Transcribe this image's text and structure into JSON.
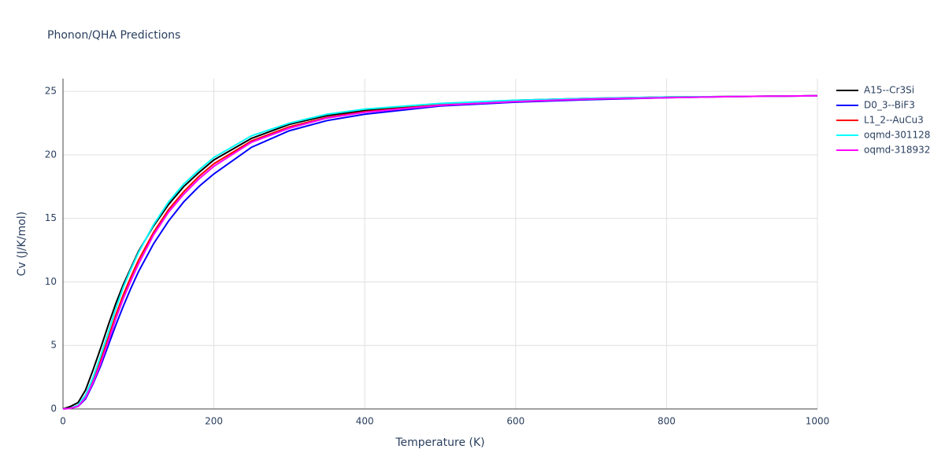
{
  "chart_data": {
    "type": "line",
    "title": "Phonon/QHA Predictions",
    "x_label": "Temperature (K)",
    "y_label": "Cv (J/K/mol)",
    "x": [
      0,
      10,
      20,
      30,
      40,
      50,
      60,
      70,
      80,
      90,
      100,
      120,
      140,
      160,
      180,
      200,
      250,
      300,
      350,
      400,
      500,
      600,
      700,
      800,
      900,
      1000
    ],
    "series": [
      {
        "name": "A15--Cr3Si",
        "color": "#000000",
        "values": [
          0,
          0.2,
          0.5,
          1.5,
          3.1,
          4.8,
          6.6,
          8.3,
          9.8,
          11.1,
          12.4,
          14.4,
          16.1,
          17.5,
          18.6,
          19.6,
          21.3,
          22.4,
          23.1,
          23.5,
          24.0,
          24.3,
          24.45,
          24.55,
          24.6,
          24.65
        ]
      },
      {
        "name": "D0_3--BiF3",
        "color": "#0000ff",
        "values": [
          0,
          0.05,
          0.2,
          0.8,
          2.0,
          3.4,
          5.0,
          6.6,
          8.1,
          9.5,
          10.8,
          13.0,
          14.8,
          16.3,
          17.5,
          18.5,
          20.6,
          21.9,
          22.7,
          23.2,
          23.85,
          24.15,
          24.35,
          24.5,
          24.6,
          24.65
        ]
      },
      {
        "name": "L1_2--AuCu3",
        "color": "#ff0000",
        "values": [
          0,
          0.05,
          0.3,
          1.0,
          2.3,
          3.9,
          5.6,
          7.4,
          9.0,
          10.4,
          11.7,
          13.9,
          15.7,
          17.1,
          18.3,
          19.3,
          21.1,
          22.2,
          22.95,
          23.4,
          23.95,
          24.25,
          24.4,
          24.55,
          24.6,
          24.65
        ]
      },
      {
        "name": "oqmd-301128",
        "color": "#00ffff",
        "values": [
          0,
          0.05,
          0.3,
          1.1,
          2.5,
          4.2,
          6.0,
          7.9,
          9.6,
          11.0,
          12.3,
          14.5,
          16.3,
          17.7,
          18.8,
          19.8,
          21.5,
          22.5,
          23.2,
          23.6,
          24.05,
          24.3,
          24.45,
          24.55,
          24.6,
          24.65
        ]
      },
      {
        "name": "oqmd-318932",
        "color": "#ff00ff",
        "values": [
          0,
          0.05,
          0.2,
          0.9,
          2.1,
          3.6,
          5.3,
          7.1,
          8.7,
          10.1,
          11.4,
          13.7,
          15.5,
          16.9,
          18.1,
          19.1,
          21.0,
          22.1,
          22.9,
          23.35,
          23.9,
          24.2,
          24.4,
          24.5,
          24.6,
          24.65
        ]
      }
    ],
    "xlim": [
      0,
      1000
    ],
    "xticks": [
      0,
      200,
      400,
      600,
      800,
      1000
    ],
    "ylim": [
      0,
      26
    ],
    "yticks": [
      0,
      5,
      10,
      15,
      20,
      25
    ],
    "grid": true
  }
}
